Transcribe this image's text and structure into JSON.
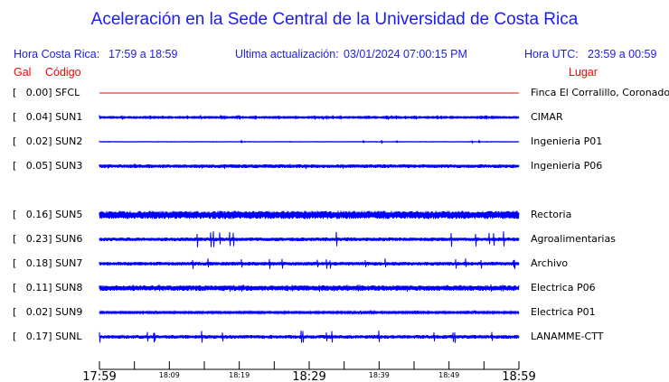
{
  "title": "Aceleración en la Sede Central de la Universidad de Costa Rica",
  "header": {
    "local_label": "Hora Costa Rica:",
    "local_range": "17:59 a 18:59",
    "update_label": "Ultima actualización:",
    "update_value": "03/01/2024 07:00:15 PM",
    "utc_label": "Hora UTC:",
    "utc_range": "23:59 a 00:59"
  },
  "columns": {
    "gal": "Gal",
    "code": "Código",
    "place": "Lugar"
  },
  "colors": {
    "title": "#1a1aff",
    "trace": "#0000ff",
    "inactive_trace": "#ff0000",
    "column_headers": "#ff0000"
  },
  "chart_data": {
    "type": "line",
    "x_ticks_major": [
      "17:59",
      "18:29",
      "18:59"
    ],
    "x_ticks_minor": [
      "18:09",
      "18:19",
      "18:39",
      "18:49"
    ],
    "xlim": [
      "17:59",
      "18:59"
    ],
    "stations": [
      {
        "gal": "0.00",
        "code": "SFCL",
        "place": "Finca El Corralillo, Coronado",
        "status": "inactive"
      },
      {
        "gal": "0.04",
        "code": "SUN1",
        "place": "CIMAR",
        "status": "active"
      },
      {
        "gal": "0.02",
        "code": "SUN2",
        "place": "Ingenieria P01",
        "status": "active"
      },
      {
        "gal": "0.05",
        "code": "SUN3",
        "place": "Ingenieria P06",
        "status": "active"
      },
      {
        "gal": "0.16",
        "code": "SUN5",
        "place": "Rectoria",
        "status": "active"
      },
      {
        "gal": "0.23",
        "code": "SUN6",
        "place": "Agroalimentarias",
        "status": "active"
      },
      {
        "gal": "0.18",
        "code": "SUN7",
        "place": "Archivo",
        "status": "active"
      },
      {
        "gal": "0.11",
        "code": "SUN8",
        "place": "Electrica P06",
        "status": "active"
      },
      {
        "gal": "0.02",
        "code": "SUN9",
        "place": "Electrica P01",
        "status": "active"
      },
      {
        "gal": "0.17",
        "code": "SUNL",
        "place": "LANAMME-CTT",
        "status": "active"
      }
    ]
  }
}
